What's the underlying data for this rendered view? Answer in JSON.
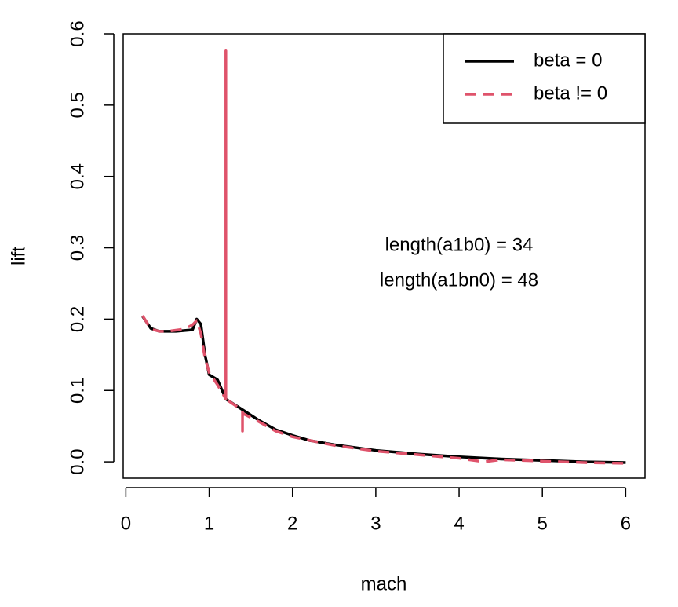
{
  "chart_data": {
    "type": "line",
    "xlabel": "mach",
    "ylabel": "lift",
    "xlim": [
      -0.032,
      6.232
    ],
    "ylim": [
      -0.023,
      0.6
    ],
    "xticks": [
      0,
      1,
      2,
      3,
      4,
      5,
      6
    ],
    "yticks": [
      {
        "value": 0,
        "label": "0.0"
      },
      0.1,
      0.2,
      0.3,
      0.4,
      0.5,
      0.6
    ],
    "grid": false,
    "legend": "top-right",
    "annotations": [
      "length(a1b0) = 34",
      "length(a1bn0) = 48"
    ],
    "series": [
      {
        "name": "beta = 0",
        "color": "#000000",
        "dash": false,
        "x": [
          0.2,
          0.3,
          0.4,
          0.6,
          0.8,
          0.85,
          0.9,
          0.95,
          1.0,
          1.1,
          1.2,
          1.4,
          1.6,
          1.8,
          2.0,
          2.2,
          2.5,
          3.0,
          3.5,
          4.0,
          4.5,
          5.0,
          5.5,
          6.0
        ],
        "values": [
          0.204,
          0.187,
          0.183,
          0.183,
          0.185,
          0.2,
          0.193,
          0.15,
          0.122,
          0.115,
          0.088,
          0.073,
          0.058,
          0.045,
          0.037,
          0.03,
          0.024,
          0.016,
          0.011,
          0.007,
          0.004,
          0.002,
          0.0,
          -0.001
        ]
      },
      {
        "name": "beta != 0",
        "color": "#DF536B",
        "dash": true,
        "x": [
          0.2,
          0.3,
          0.4,
          0.5,
          0.7,
          0.8,
          0.85,
          0.9,
          0.95,
          1.0,
          1.1,
          1.2,
          1.2,
          1.2,
          1.4,
          1.4,
          1.4,
          1.6,
          1.8,
          2.0,
          2.5,
          3.0,
          3.5,
          4.0,
          4.3,
          4.5,
          5.0,
          5.5,
          6.0
        ],
        "values": [
          0.205,
          0.186,
          0.183,
          0.183,
          0.186,
          0.192,
          0.198,
          0.18,
          0.145,
          0.125,
          0.108,
          0.088,
          0.576,
          0.088,
          0.072,
          0.043,
          0.068,
          0.056,
          0.043,
          0.035,
          0.023,
          0.015,
          0.01,
          0.005,
          0.0,
          0.003,
          0.001,
          -0.001,
          -0.002
        ]
      }
    ]
  }
}
